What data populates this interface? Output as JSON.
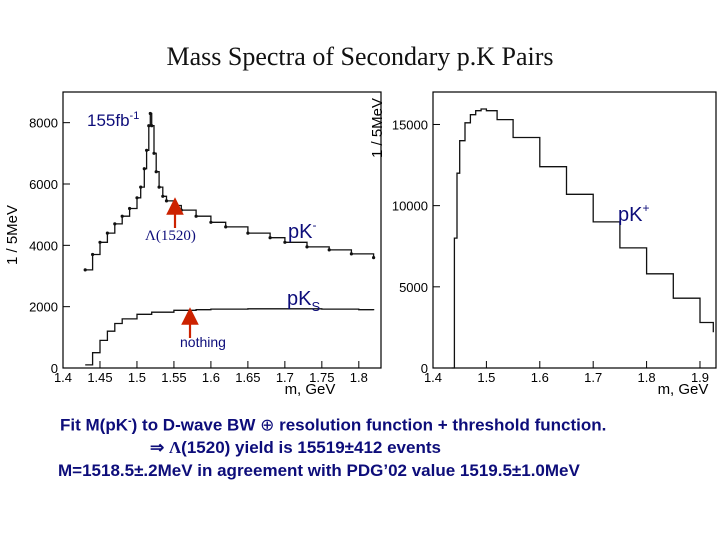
{
  "title": "Mass Spectra of Secondary p.K Pairs",
  "left_plot": {
    "ylabel": "1 / 5MeV",
    "xlabel": "m, GeV",
    "luminosity": "155fb",
    "luminosity_sup": "-1",
    "lambda_label": "Λ(1520)",
    "curve_label_main": "pK",
    "curve_label_main_sup": "-",
    "curve_label_ks": "pK",
    "curve_label_ks_sub": "S",
    "nothing_label": "nothing",
    "x_ticks": [
      "1.4",
      "1.45",
      "1.5",
      "1.55",
      "1.6",
      "1.65",
      "1.7",
      "1.75",
      "1.8"
    ],
    "y_ticks": [
      "0",
      "2000",
      "4000",
      "6000",
      "8000"
    ]
  },
  "right_plot": {
    "ylabel": "1 / 5MeV",
    "xlabel": "m, GeV",
    "curve_label": "pK",
    "curve_label_sup": "+",
    "x_ticks": [
      "1.4",
      "1.5",
      "1.6",
      "1.7",
      "1.8",
      "1.9"
    ],
    "y_ticks": [
      "0",
      "5000",
      "10000",
      "15000"
    ]
  },
  "chart_data": [
    {
      "type": "line",
      "title": "",
      "xlabel": "m, GeV",
      "ylabel": "1 / 5MeV",
      "xlim": [
        1.4,
        1.83
      ],
      "ylim": [
        0,
        9000
      ],
      "series": [
        {
          "name": "pK-",
          "x": [
            1.43,
            1.44,
            1.45,
            1.46,
            1.47,
            1.48,
            1.49,
            1.5,
            1.505,
            1.51,
            1.513,
            1.516,
            1.518,
            1.52,
            1.523,
            1.526,
            1.53,
            1.535,
            1.54,
            1.55,
            1.56,
            1.58,
            1.6,
            1.62,
            1.65,
            1.68,
            1.7,
            1.73,
            1.76,
            1.79,
            1.82
          ],
          "y": [
            3200,
            3700,
            4100,
            4400,
            4700,
            4950,
            5200,
            5550,
            5900,
            6500,
            7100,
            7900,
            8300,
            7900,
            7000,
            6400,
            5900,
            5600,
            5450,
            5300,
            5150,
            4950,
            4750,
            4600,
            4400,
            4250,
            4100,
            3950,
            3850,
            3720,
            3600
          ]
        },
        {
          "name": "pKS",
          "x": [
            1.43,
            1.44,
            1.45,
            1.46,
            1.47,
            1.48,
            1.5,
            1.52,
            1.55,
            1.58,
            1.6,
            1.65,
            1.7,
            1.75,
            1.8,
            1.82
          ],
          "y": [
            100,
            500,
            900,
            1200,
            1450,
            1600,
            1750,
            1820,
            1880,
            1900,
            1920,
            1930,
            1930,
            1920,
            1900,
            1880
          ]
        }
      ]
    },
    {
      "type": "line",
      "title": "",
      "xlabel": "m, GeV",
      "ylabel": "1 / 5MeV",
      "xlim": [
        1.4,
        1.93
      ],
      "ylim": [
        0,
        17000
      ],
      "series": [
        {
          "name": "pK+",
          "x": [
            1.435,
            1.44,
            1.445,
            1.45,
            1.46,
            1.47,
            1.48,
            1.49,
            1.5,
            1.52,
            1.55,
            1.6,
            1.65,
            1.7,
            1.75,
            1.8,
            1.85,
            1.9,
            1.925
          ],
          "y": [
            0,
            8000,
            12000,
            14000,
            15100,
            15600,
            15850,
            15950,
            15850,
            15300,
            14200,
            12400,
            10700,
            9000,
            7400,
            5800,
            4300,
            2800,
            2200
          ]
        }
      ]
    }
  ],
  "conclusion": {
    "line1_pre": "Fit M(pK",
    "line1_sup": "-",
    "line1_mid": ") to D-wave BW",
    "oplus": "⊕",
    "line1_post": "resolution function + threshold function.",
    "line2_arrow": "⇒",
    "line2_lambda": "Λ",
    "line2_text": "(1520) yield is 15519±412 events",
    "line3": "M=1518.5±.2MeV in agreement with PDG’02 value 1519.5±1.0MeV"
  }
}
